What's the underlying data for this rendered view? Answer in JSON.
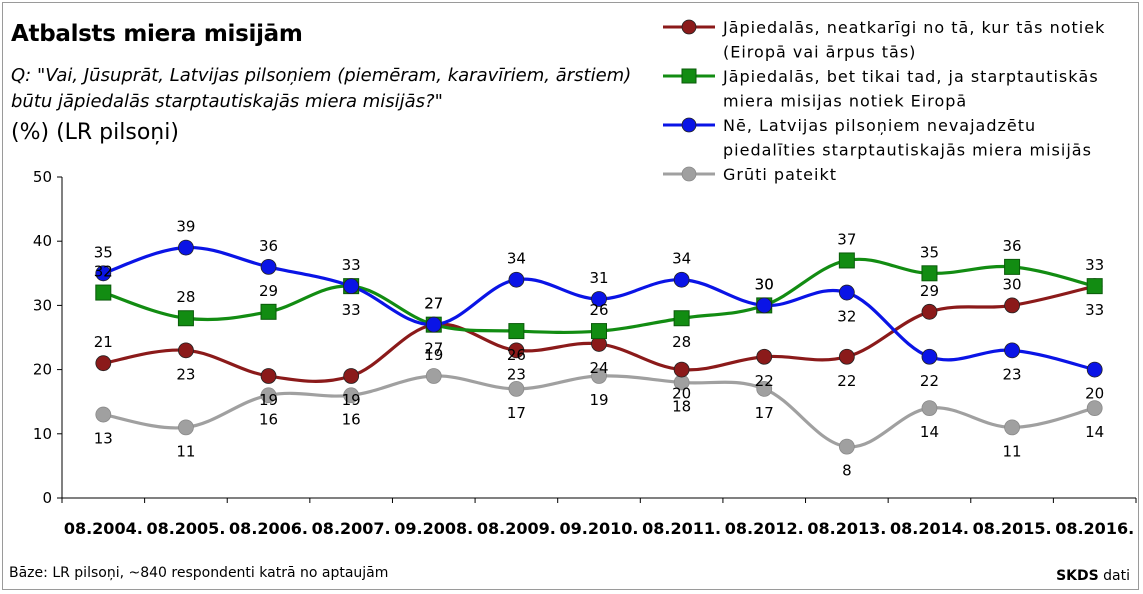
{
  "title": "Atbalsts miera misijām",
  "question_line1": "Q: \"Vai, Jūsuprāt, Latvijas pilsoņiem (piemēram, karavīriem, ārstiem)",
  "question_line2": "būtu jāpiedalās starptautiskajās miera misijās?\"",
  "unit_note": "(%) (LR pilsoņi)",
  "base_note": "Bāze:  LR pilsoņi, ~840 respondenti katrā no aptaujām",
  "source_brand": "SKDS",
  "source_suffix": " dati",
  "chart_data": {
    "type": "line",
    "categories": [
      "08.2004.",
      "08.2005.",
      "08.2006.",
      "08.2007.",
      "09.2008.",
      "08.2009.",
      "09.2010.",
      "08.2011.",
      "08.2012.",
      "08.2013.",
      "08.2014.",
      "08.2015.",
      "08.2016."
    ],
    "ylim": [
      0,
      50
    ],
    "yticks": [
      0,
      10,
      20,
      30,
      40,
      50
    ],
    "grid": false,
    "legend_position": "top-right",
    "series": [
      {
        "name_lines": [
          "Jāpiedalās, neatkarīgi no tā, kur tās notiek",
          "(Eiropā vai ārpus tās)"
        ],
        "color": "#8b1a1a",
        "marker": "circle",
        "values": [
          21,
          23,
          19,
          19,
          27,
          23,
          24,
          20,
          22,
          22,
          29,
          30,
          33
        ],
        "label_pos": [
          "above",
          "below",
          "below",
          "below",
          "above",
          "below",
          "below",
          "below",
          "below",
          "below",
          "above",
          "above",
          "below"
        ]
      },
      {
        "name_lines": [
          "Jāpiedalās, bet tikai tad, ja starptautiskās",
          "miera misijas notiek Eiropā"
        ],
        "color": "#128c12",
        "marker": "square",
        "values": [
          32,
          28,
          29,
          33,
          27,
          26,
          26,
          28,
          30,
          37,
          35,
          36,
          33
        ],
        "label_pos": [
          "above",
          "above",
          "above",
          "below",
          "below",
          "below",
          "above",
          "below",
          "above",
          "above",
          "above",
          "above",
          "above"
        ]
      },
      {
        "name_lines": [
          "Nē, Latvijas pilsoņiem nevajadzētu",
          "piedalīties starptautiskajās miera misijās"
        ],
        "color": "#0a14e6",
        "marker": "circle",
        "values": [
          35,
          39,
          36,
          33,
          27,
          34,
          31,
          34,
          30,
          32,
          22,
          23,
          20
        ],
        "label_pos": [
          "above",
          "above",
          "above",
          "above",
          "above",
          "above",
          "above",
          "above",
          "above",
          "below",
          "below",
          "below",
          "below"
        ]
      },
      {
        "name_lines": [
          "Grūti pateikt"
        ],
        "color": "#a0a0a0",
        "marker": "circle",
        "values": [
          13,
          11,
          16,
          16,
          19,
          17,
          19,
          18,
          17,
          8,
          14,
          11,
          14
        ],
        "label_pos": [
          "below",
          "below",
          "below",
          "below",
          "above",
          "below",
          "below",
          "below",
          "below",
          "below",
          "below",
          "below",
          "below"
        ]
      }
    ]
  }
}
